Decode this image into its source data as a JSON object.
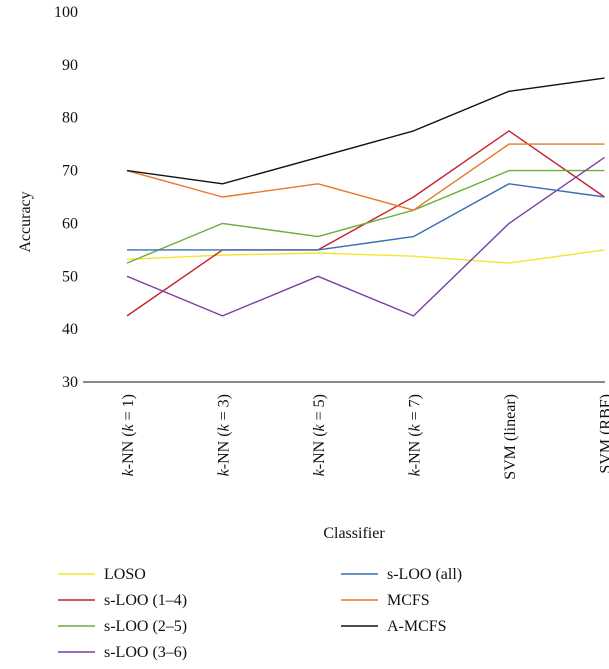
{
  "chart_data": {
    "type": "line",
    "xlabel": "Classifier",
    "ylabel": "Accuracy",
    "ylim": [
      30,
      100
    ],
    "yticks": [
      30,
      40,
      50,
      60,
      70,
      80,
      90,
      100
    ],
    "grid": false,
    "legend_position": "bottom",
    "categories": [
      [
        {
          "t": "k",
          "i": true
        },
        {
          "t": "-NN (",
          "i": false
        },
        {
          "t": "k",
          "i": true
        },
        {
          "t": " = 1)",
          "i": false
        }
      ],
      [
        {
          "t": "k",
          "i": true
        },
        {
          "t": "-NN (",
          "i": false
        },
        {
          "t": "k",
          "i": true
        },
        {
          "t": " = 3)",
          "i": false
        }
      ],
      [
        {
          "t": "k",
          "i": true
        },
        {
          "t": "-NN (",
          "i": false
        },
        {
          "t": "k",
          "i": true
        },
        {
          "t": " = 5)",
          "i": false
        }
      ],
      [
        {
          "t": "k",
          "i": true
        },
        {
          "t": "-NN (",
          "i": false
        },
        {
          "t": "k",
          "i": true
        },
        {
          "t": " = 7)",
          "i": false
        }
      ],
      [
        {
          "t": "SVM (linear)",
          "i": false
        }
      ],
      [
        {
          "t": "SVM (RBF)",
          "i": false
        }
      ]
    ],
    "series": [
      {
        "name": "LOSO",
        "color": "#f2e530",
        "values": [
          53.2,
          54.0,
          54.4,
          53.8,
          52.5,
          55.0
        ]
      },
      {
        "name": "s-LOO (1–4)",
        "color": "#c8202a",
        "values": [
          42.5,
          55.0,
          55.0,
          65.0,
          77.5,
          65.0
        ]
      },
      {
        "name": "s-LOO (2–5)",
        "color": "#6aaf3a",
        "values": [
          52.5,
          60.0,
          57.5,
          62.5,
          70.0,
          70.0
        ]
      },
      {
        "name": "s-LOO (3–6)",
        "color": "#7b3fa0",
        "values": [
          50.0,
          42.5,
          50.0,
          42.5,
          60.0,
          72.5
        ]
      },
      {
        "name": "s-LOO (all)",
        "color": "#3a6fb5",
        "values": [
          55.0,
          55.0,
          55.0,
          57.5,
          67.5,
          65.0
        ]
      },
      {
        "name": "MCFS",
        "color": "#e8792b",
        "values": [
          70.0,
          65.0,
          67.5,
          62.5,
          75.0,
          75.0
        ]
      },
      {
        "name": "A-MCFS",
        "color": "#111111",
        "values": [
          70.0,
          67.5,
          72.5,
          77.5,
          85.0,
          87.5
        ]
      }
    ]
  }
}
